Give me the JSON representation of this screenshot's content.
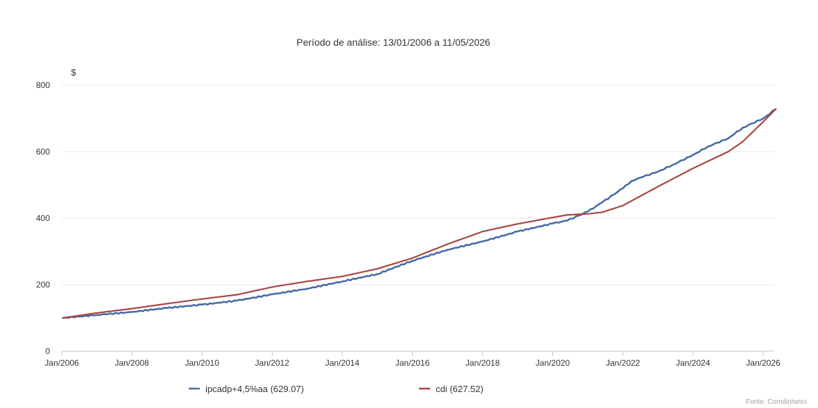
{
  "chart_data": {
    "type": "line",
    "title": "Período de análise: 13/01/2006 a 11/05/2026",
    "xlabel": "",
    "ylabel": "$",
    "x_range": [
      "2006-01-13",
      "2026-05-11"
    ],
    "ylim": [
      0,
      800
    ],
    "y_ticks": [
      0,
      200,
      400,
      600,
      800
    ],
    "x_ticks": [
      {
        "date": "2006-01-01",
        "label": "Jan/2006"
      },
      {
        "date": "2008-01-01",
        "label": "Jan/2008"
      },
      {
        "date": "2010-01-01",
        "label": "Jan/2010"
      },
      {
        "date": "2012-01-01",
        "label": "Jan/2012"
      },
      {
        "date": "2014-01-01",
        "label": "Jan/2014"
      },
      {
        "date": "2016-01-01",
        "label": "Jan/2016"
      },
      {
        "date": "2018-01-01",
        "label": "Jan/2018"
      },
      {
        "date": "2020-01-01",
        "label": "Jan/2020"
      },
      {
        "date": "2022-01-01",
        "label": "Jan/2022"
      },
      {
        "date": "2024-01-01",
        "label": "Jan/2024"
      },
      {
        "date": "2026-01-01",
        "label": "Jan/2026"
      }
    ],
    "grid": true,
    "legend_position": "bottom",
    "series": [
      {
        "name": "ipcadp+4,5%aa (629.07)",
        "color": "#4a6aa5",
        "points": [
          [
            "2006-01-13",
            100
          ],
          [
            "2007-01-01",
            109
          ],
          [
            "2008-01-01",
            118
          ],
          [
            "2009-01-01",
            130
          ],
          [
            "2010-01-01",
            140
          ],
          [
            "2011-01-01",
            152
          ],
          [
            "2012-01-01",
            171
          ],
          [
            "2013-01-01",
            188
          ],
          [
            "2014-01-01",
            210
          ],
          [
            "2015-01-01",
            232
          ],
          [
            "2016-01-01",
            272
          ],
          [
            "2017-01-01",
            305
          ],
          [
            "2018-01-01",
            330
          ],
          [
            "2019-01-01",
            360
          ],
          [
            "2020-01-01",
            384
          ],
          [
            "2020-06-01",
            393
          ],
          [
            "2021-01-01",
            420
          ],
          [
            "2021-06-01",
            448
          ],
          [
            "2022-01-01",
            490
          ],
          [
            "2022-04-01",
            512
          ],
          [
            "2022-07-01",
            522
          ],
          [
            "2023-01-01",
            540
          ],
          [
            "2023-06-01",
            560
          ],
          [
            "2024-01-01",
            590
          ],
          [
            "2024-06-01",
            615
          ],
          [
            "2025-01-01",
            640
          ],
          [
            "2025-06-01",
            672
          ],
          [
            "2026-01-01",
            700
          ],
          [
            "2026-05-11",
            728
          ]
        ]
      },
      {
        "name": "cdi (627.52)",
        "color": "#a64541",
        "points": [
          [
            "2006-01-13",
            100
          ],
          [
            "2007-01-01",
            115
          ],
          [
            "2008-01-01",
            128
          ],
          [
            "2009-01-01",
            143
          ],
          [
            "2010-01-01",
            157
          ],
          [
            "2011-01-01",
            170
          ],
          [
            "2012-01-01",
            193
          ],
          [
            "2013-01-01",
            210
          ],
          [
            "2014-01-01",
            225
          ],
          [
            "2015-01-01",
            248
          ],
          [
            "2016-01-01",
            280
          ],
          [
            "2017-01-01",
            322
          ],
          [
            "2018-01-01",
            360
          ],
          [
            "2019-01-01",
            383
          ],
          [
            "2020-01-01",
            402
          ],
          [
            "2020-06-01",
            410
          ],
          [
            "2021-01-01",
            413
          ],
          [
            "2021-06-01",
            418
          ],
          [
            "2022-01-01",
            438
          ],
          [
            "2023-01-01",
            495
          ],
          [
            "2024-01-01",
            550
          ],
          [
            "2025-01-01",
            600
          ],
          [
            "2025-06-01",
            630
          ],
          [
            "2026-01-01",
            690
          ],
          [
            "2026-05-11",
            728
          ]
        ]
      }
    ]
  },
  "footer": "Fonte: Comdinheiro"
}
